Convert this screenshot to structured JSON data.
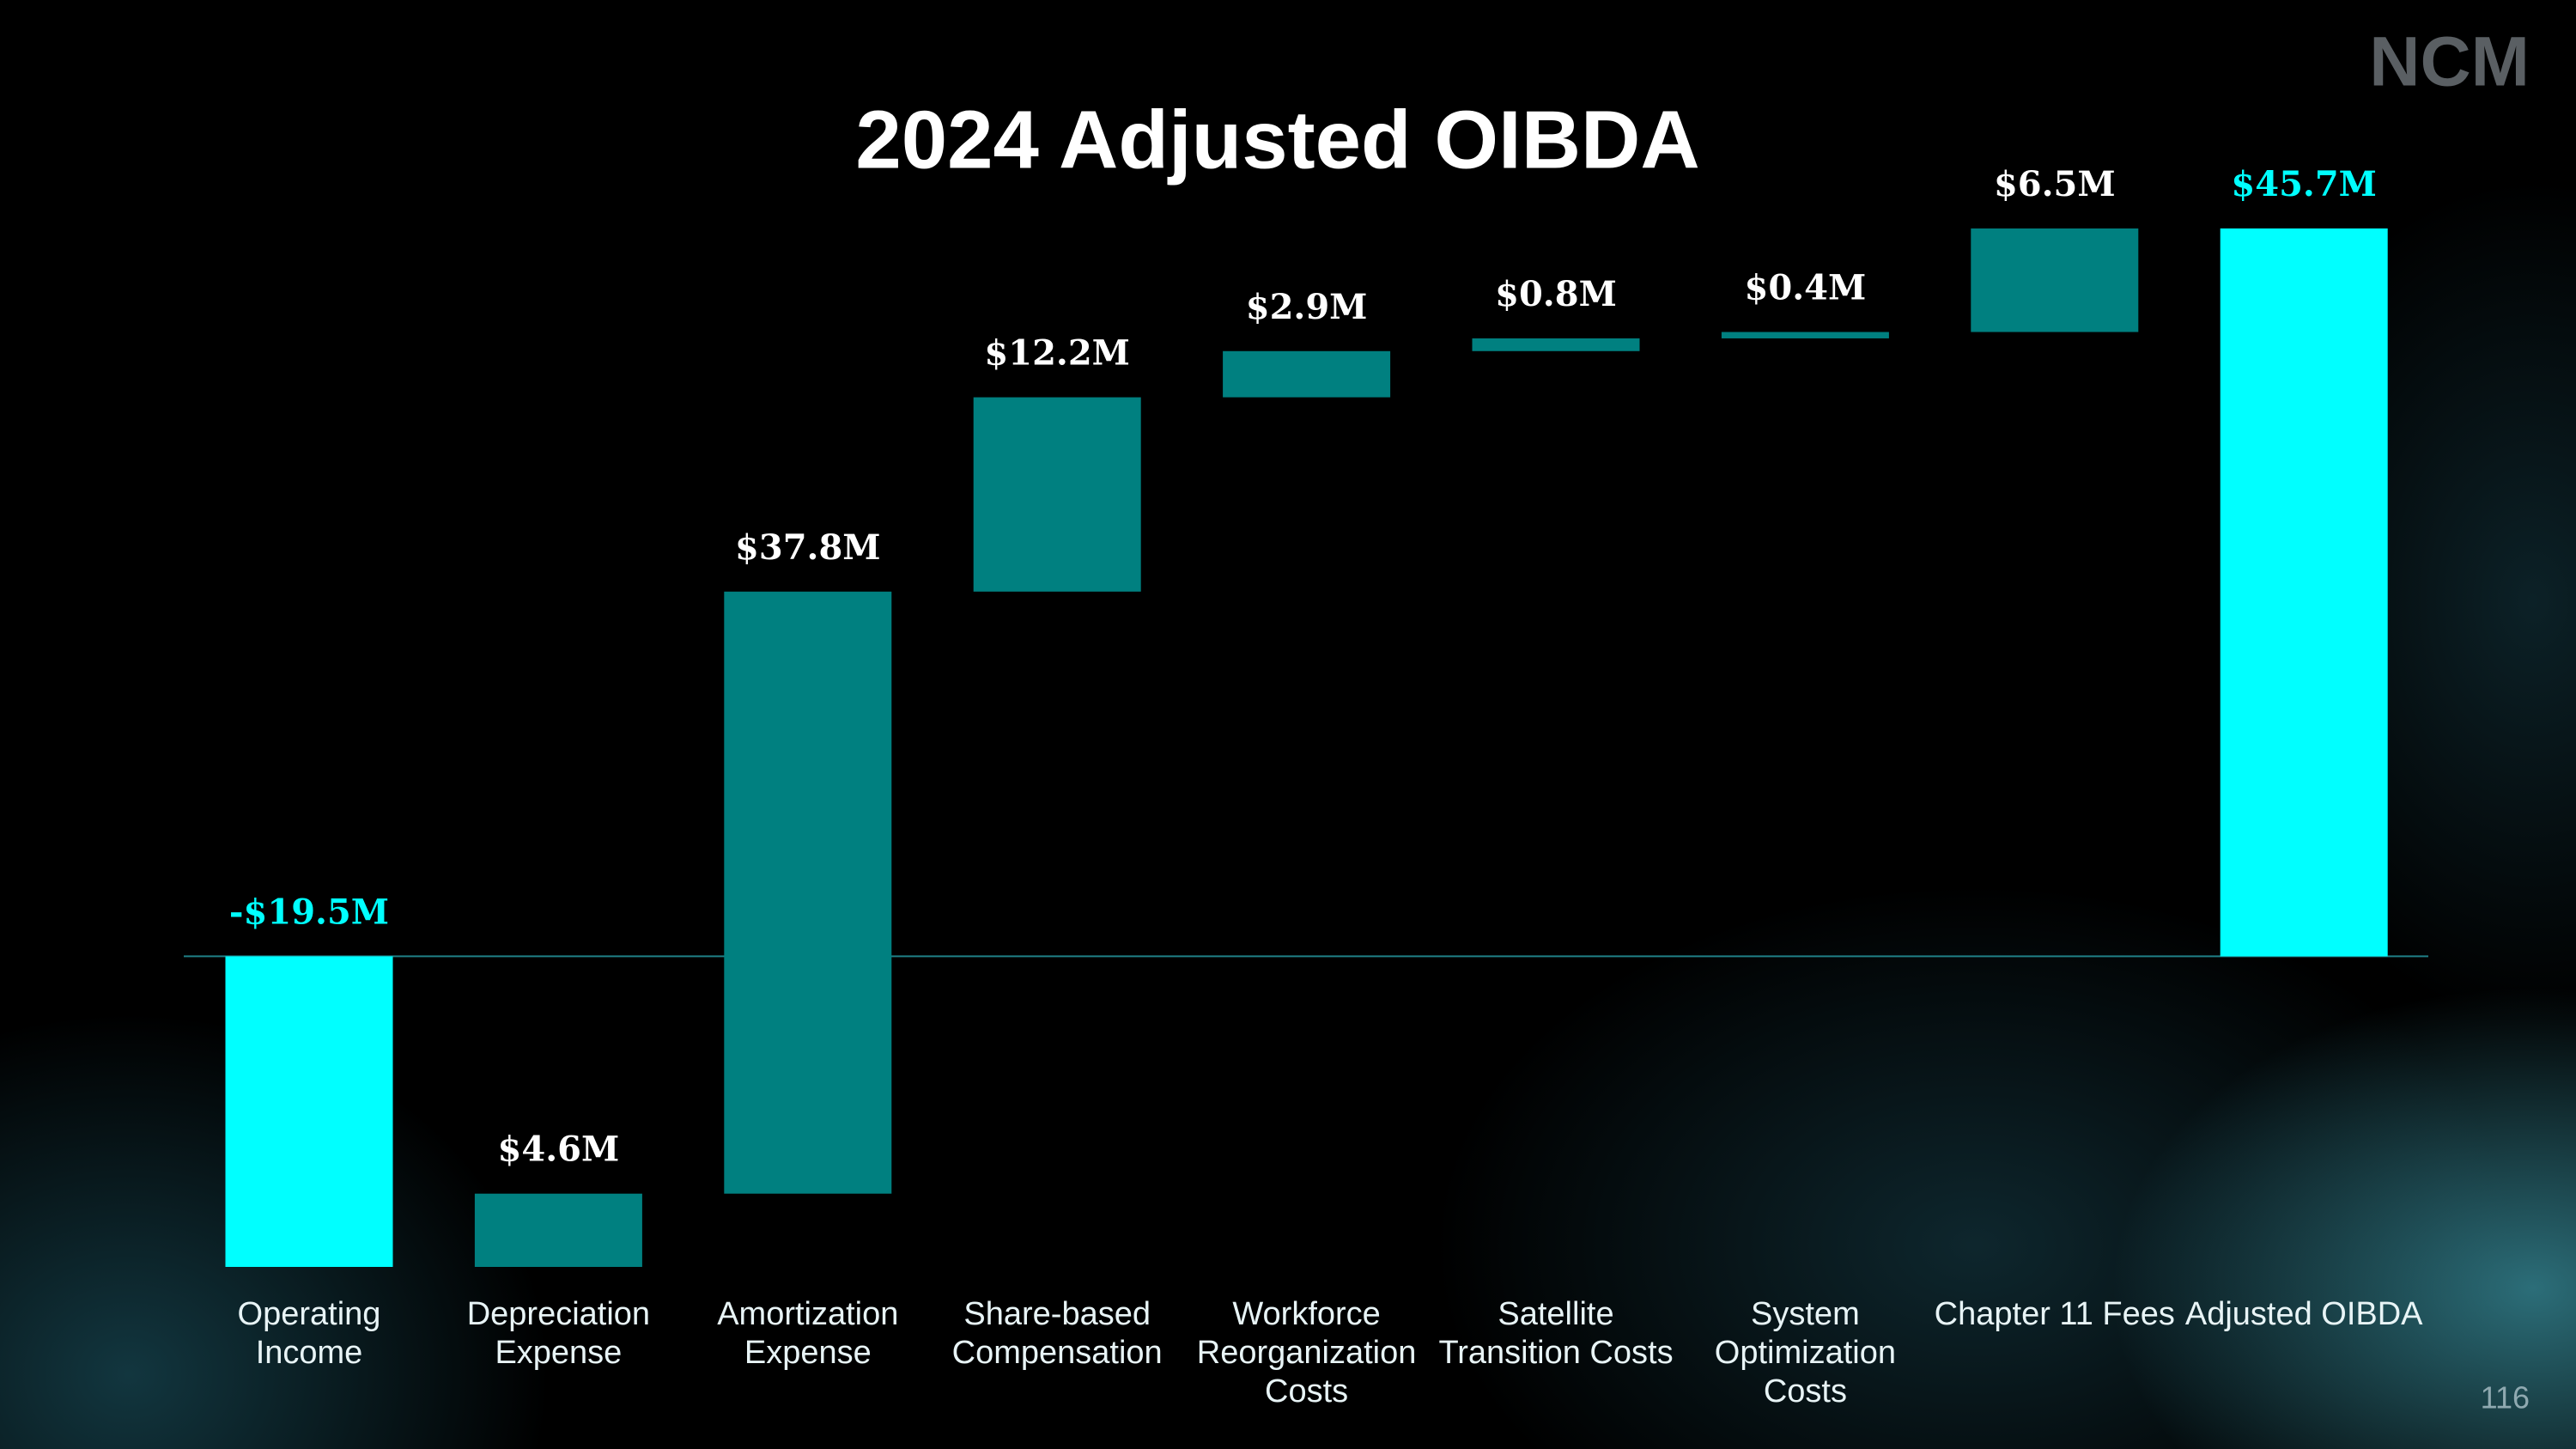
{
  "logo": "NCM",
  "page_number": "116",
  "chart_data": {
    "type": "waterfall",
    "title": "2024 Adjusted OIBDA",
    "categories": [
      "Operating Income",
      "Depreciation Expense",
      "Amortization Expense",
      "Share-based Compensation",
      "Workforce Reorganization Costs",
      "Satellite Transition Costs",
      "System Optimization Costs",
      "Chapter 11 Fees",
      "Adjusted OIBDA"
    ],
    "values": [
      -19.5,
      4.6,
      37.8,
      12.2,
      2.9,
      0.8,
      0.4,
      6.5,
      45.7
    ],
    "value_labels": [
      "-$19.5M",
      "$4.6M",
      "$37.8M",
      "$12.2M",
      "$2.9M",
      "$0.8M",
      "$0.4M",
      "$6.5M",
      "$45.7M"
    ],
    "colors": [
      "#00ffff",
      "#008080",
      "#008080",
      "#008080",
      "#008080",
      "#008080",
      "#008080",
      "#008080",
      "#00ffff"
    ]
  }
}
